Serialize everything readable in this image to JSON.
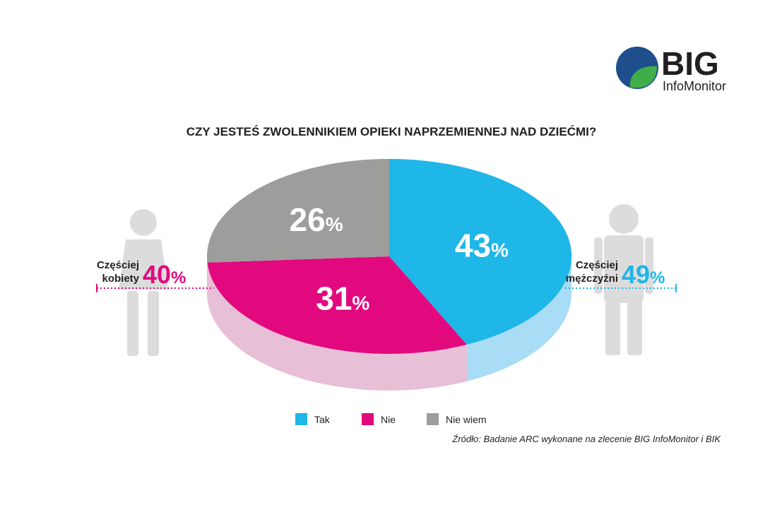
{
  "logo": {
    "big": "BIG",
    "small": "InfoMonitor",
    "colors": {
      "blue": "#1f4e8c",
      "green": "#3fae49"
    }
  },
  "chart_data": {
    "type": "pie",
    "title": "CZY JESTEŚ ZWOLENNIKIEM OPIEKI NAPRZEMIENNEJ NAD DZIEĆMI?",
    "slices": [
      {
        "name": "Tak",
        "value": 43,
        "color": "#1fb6e8",
        "side_color": "#a9dcf5"
      },
      {
        "name": "Nie",
        "value": 31,
        "color": "#e2097f",
        "side_color": "#e7bfd6"
      },
      {
        "name": "Nie wiem",
        "value": 26,
        "color": "#9d9d9c",
        "side_color": "#cfcfcf"
      }
    ],
    "percent_sign": "%",
    "legend_position": "bottom",
    "annotations": {
      "left": {
        "line1": "Częściej",
        "line2": "kobiety",
        "value": "40",
        "color": "#e2097f",
        "figure": "woman-icon"
      },
      "right": {
        "line1": "Częściej",
        "line2": "mężczyźni",
        "value": "49",
        "color": "#1fb6e8",
        "figure": "man-icon"
      }
    }
  },
  "source": "Źródło:  Badanie ARC wykonane na zlecenie BIG InfoMonitor i BIK"
}
